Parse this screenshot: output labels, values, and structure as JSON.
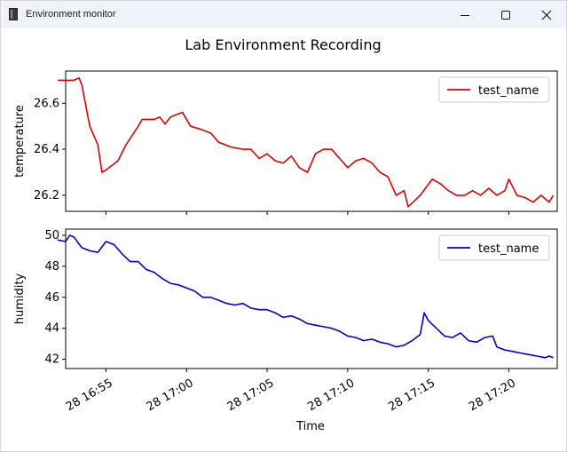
{
  "window": {
    "title": "Environment monitor",
    "controls": [
      "minimize",
      "maximize",
      "close"
    ]
  },
  "colors": {
    "temperature_line": "#dd0000",
    "humidity_line": "#0000cc",
    "titlebar_bg": "#f0f3f9"
  },
  "chart_data": {
    "type": "line",
    "title": "Lab Environment Recording",
    "xlabel": "Time",
    "x_tick_labels": [
      "28 16:55",
      "28 17:00",
      "28 17:05",
      "28 17:10",
      "28 17:15",
      "28 17:20"
    ],
    "x_range": [
      "16:52:30",
      "17:23:00"
    ],
    "grid": false,
    "panels": [
      {
        "ylabel": "temperature",
        "ylim": [
          26.13,
          26.74
        ],
        "y_ticks": [
          "26.2",
          "26.4",
          "26.6"
        ],
        "legend": "top-right",
        "series": [
          {
            "name": "test_name",
            "x": [
              "16:52:00",
              "16:52:45",
              "16:53:00",
              "16:53:20",
              "16:53:30",
              "16:54:00",
              "16:54:30",
              "16:54:45",
              "16:55:00",
              "16:55:45",
              "16:56:15",
              "16:57:00",
              "16:57:15",
              "16:58:00",
              "16:58:20",
              "16:58:40",
              "16:59:00",
              "16:59:20",
              "16:59:45",
              "17:00:15",
              "17:00:45",
              "17:01:30",
              "17:02:00",
              "17:02:45",
              "17:03:30",
              "17:04:00",
              "17:04:30",
              "17:05:00",
              "17:05:30",
              "17:06:00",
              "17:06:30",
              "17:07:00",
              "17:07:30",
              "17:08:00",
              "17:08:30",
              "17:09:00",
              "17:09:30",
              "17:10:00",
              "17:10:30",
              "17:11:00",
              "17:11:30",
              "17:12:00",
              "17:12:30",
              "17:13:00",
              "17:13:30",
              "17:13:45",
              "17:14:30",
              "17:15:15",
              "17:15:45",
              "17:16:15",
              "17:16:45",
              "17:17:15",
              "17:17:45",
              "17:18:15",
              "17:18:45",
              "17:19:15",
              "17:19:45",
              "17:20:00",
              "17:20:30",
              "17:21:00",
              "17:21:30",
              "17:22:00",
              "17:22:30",
              "17:22:45"
            ],
            "values": [
              26.7,
              26.7,
              26.7,
              26.71,
              26.68,
              26.5,
              26.42,
              26.3,
              26.31,
              26.35,
              26.42,
              26.5,
              26.53,
              26.53,
              26.54,
              26.51,
              26.54,
              26.55,
              26.56,
              26.5,
              26.49,
              26.47,
              26.43,
              26.41,
              26.4,
              26.4,
              26.36,
              26.38,
              26.35,
              26.34,
              26.37,
              26.32,
              26.3,
              26.38,
              26.4,
              26.4,
              26.36,
              26.32,
              26.35,
              26.36,
              26.34,
              26.3,
              26.28,
              26.2,
              26.22,
              26.15,
              26.2,
              26.27,
              26.25,
              26.22,
              26.2,
              26.2,
              26.22,
              26.2,
              26.23,
              26.2,
              26.22,
              26.27,
              26.2,
              26.19,
              26.17,
              26.2,
              26.17,
              26.2
            ]
          }
        ]
      },
      {
        "ylabel": "humidity",
        "ylim": [
          41.4,
          50.4
        ],
        "y_ticks": [
          "42",
          "44",
          "46",
          "48",
          "50"
        ],
        "legend": "top-right",
        "series": [
          {
            "name": "test_name",
            "x": [
              "16:52:00",
              "16:52:30",
              "16:52:45",
              "16:53:00",
              "16:53:30",
              "16:54:00",
              "16:54:30",
              "16:55:00",
              "16:55:30",
              "16:56:00",
              "16:56:30",
              "16:57:00",
              "16:57:30",
              "16:58:00",
              "16:58:30",
              "16:59:00",
              "16:59:30",
              "17:00:00",
              "17:00:30",
              "17:01:00",
              "17:01:30",
              "17:02:00",
              "17:02:30",
              "17:03:00",
              "17:03:30",
              "17:04:00",
              "17:04:30",
              "17:05:00",
              "17:05:30",
              "17:06:00",
              "17:06:30",
              "17:07:00",
              "17:07:30",
              "17:08:00",
              "17:08:30",
              "17:09:00",
              "17:09:30",
              "17:10:00",
              "17:10:30",
              "17:11:00",
              "17:11:30",
              "17:12:00",
              "17:12:30",
              "17:13:00",
              "17:13:30",
              "17:14:00",
              "17:14:30",
              "17:14:45",
              "17:15:00",
              "17:15:30",
              "17:16:00",
              "17:16:30",
              "17:17:00",
              "17:17:30",
              "17:18:00",
              "17:18:30",
              "17:19:00",
              "17:19:15",
              "17:19:45",
              "17:20:15",
              "17:20:45",
              "17:21:15",
              "17:21:45",
              "17:22:15",
              "17:22:30",
              "17:22:45"
            ],
            "values": [
              49.7,
              49.6,
              50.0,
              49.9,
              49.2,
              49.0,
              48.9,
              49.6,
              49.4,
              48.8,
              48.3,
              48.3,
              47.8,
              47.6,
              47.2,
              46.9,
              46.8,
              46.6,
              46.4,
              46.0,
              46.0,
              45.8,
              45.6,
              45.5,
              45.6,
              45.3,
              45.2,
              45.2,
              45.0,
              44.7,
              44.8,
              44.6,
              44.3,
              44.2,
              44.1,
              44.0,
              43.8,
              43.5,
              43.4,
              43.2,
              43.3,
              43.1,
              43.0,
              42.8,
              42.9,
              43.2,
              43.6,
              45.0,
              44.5,
              44.0,
              43.5,
              43.4,
              43.7,
              43.2,
              43.1,
              43.4,
              43.5,
              42.8,
              42.6,
              42.5,
              42.4,
              42.3,
              42.2,
              42.1,
              42.2,
              42.1
            ]
          }
        ]
      }
    ]
  }
}
